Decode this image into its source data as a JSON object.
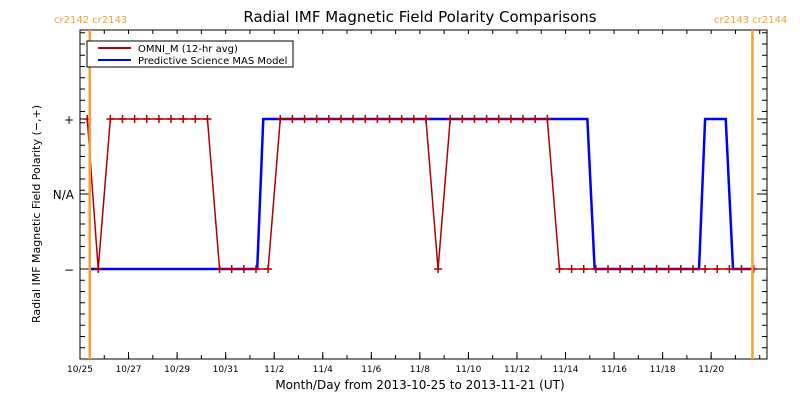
{
  "chart_data": {
    "type": "line",
    "title": "Radial IMF Magnetic Field Polarity Comparisons",
    "xlabel": "Month/Day from 2013-10-25 to 2013-11-21 (UT)",
    "ylabel": "Radial IMF Magnetic Field Polarity (−,+)",
    "x_unit": "days since 2013-10-25 00:00 UT",
    "xlim": [
      0,
      28.3
    ],
    "ylim": [
      -1.6,
      1.6
    ],
    "x_ticks": [
      {
        "value": 0,
        "label": "10/25"
      },
      {
        "value": 2,
        "label": "10/27"
      },
      {
        "value": 4,
        "label": "10/29"
      },
      {
        "value": 6,
        "label": "10/31"
      },
      {
        "value": 8,
        "label": "11/2"
      },
      {
        "value": 10,
        "label": "11/4"
      },
      {
        "value": 12,
        "label": "11/6"
      },
      {
        "value": 14,
        "label": "11/8"
      },
      {
        "value": 16,
        "label": "11/10"
      },
      {
        "value": 18,
        "label": "11/12"
      },
      {
        "value": 20,
        "label": "11/14"
      },
      {
        "value": 22,
        "label": "11/16"
      },
      {
        "value": 24,
        "label": "11/18"
      },
      {
        "value": 26,
        "label": "11/20"
      }
    ],
    "y_ticks": [
      {
        "value": 1,
        "label": "+"
      },
      {
        "value": 0,
        "label": "N/A"
      },
      {
        "value": -1,
        "label": "−"
      }
    ],
    "legend": {
      "position": "top-left"
    },
    "series": [
      {
        "name": "OMNI_M (12-hr avg)",
        "color": "#b00000",
        "marker": "plus",
        "points": [
          [
            0.3,
            1
          ],
          [
            0.75,
            -1
          ],
          [
            1.25,
            1
          ],
          [
            1.75,
            1
          ],
          [
            2.25,
            1
          ],
          [
            2.75,
            1
          ],
          [
            3.25,
            1
          ],
          [
            3.75,
            1
          ],
          [
            4.25,
            1
          ],
          [
            4.75,
            1
          ],
          [
            5.25,
            1
          ],
          [
            5.75,
            -1
          ],
          [
            6.25,
            -1
          ],
          [
            6.75,
            -1
          ],
          [
            7.25,
            -1
          ],
          [
            7.75,
            -1
          ],
          [
            8.25,
            1
          ],
          [
            8.75,
            1
          ],
          [
            9.25,
            1
          ],
          [
            9.75,
            1
          ],
          [
            10.25,
            1
          ],
          [
            10.75,
            1
          ],
          [
            11.25,
            1
          ],
          [
            11.75,
            1
          ],
          [
            12.25,
            1
          ],
          [
            12.75,
            1
          ],
          [
            13.25,
            1
          ],
          [
            13.75,
            1
          ],
          [
            14.25,
            1
          ],
          [
            14.75,
            -1
          ],
          [
            15.25,
            1
          ],
          [
            15.75,
            1
          ],
          [
            16.25,
            1
          ],
          [
            16.75,
            1
          ],
          [
            17.25,
            1
          ],
          [
            17.75,
            1
          ],
          [
            18.25,
            1
          ],
          [
            18.75,
            1
          ],
          [
            19.25,
            1
          ],
          [
            19.75,
            -1
          ],
          [
            20.25,
            -1
          ],
          [
            20.75,
            -1
          ],
          [
            21.25,
            -1
          ],
          [
            21.75,
            -1
          ],
          [
            22.25,
            -1
          ],
          [
            22.75,
            -1
          ],
          [
            23.25,
            -1
          ],
          [
            23.75,
            -1
          ],
          [
            24.25,
            -1
          ],
          [
            24.75,
            -1
          ],
          [
            25.25,
            -1
          ],
          [
            25.75,
            -1
          ],
          [
            26.25,
            -1
          ],
          [
            26.75,
            -1
          ],
          [
            27.25,
            -1
          ],
          [
            27.75,
            -1
          ]
        ]
      },
      {
        "name": "Predictive Science MAS Model",
        "color": "#0000ff",
        "marker": "none",
        "points": [
          [
            0.4,
            -1
          ],
          [
            7.3,
            -1
          ],
          [
            7.55,
            1
          ],
          [
            20.9,
            1
          ],
          [
            21.2,
            -1
          ],
          [
            25.5,
            -1
          ],
          [
            25.75,
            1
          ],
          [
            26.6,
            1
          ],
          [
            26.9,
            -1
          ],
          [
            27.8,
            -1
          ]
        ]
      }
    ],
    "carrington_markers": [
      {
        "value": 0.4,
        "label": "cr2142 cr2143"
      },
      {
        "value": 27.7,
        "label": "cr2143 cr2144"
      }
    ],
    "marker_color": "#f5a030"
  }
}
